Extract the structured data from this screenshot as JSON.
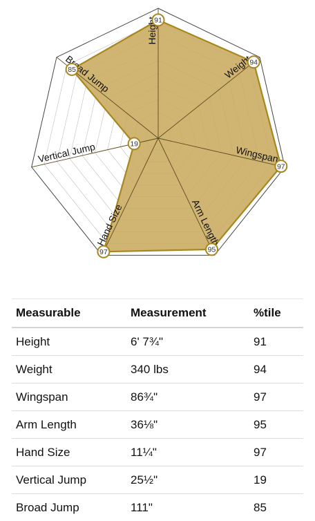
{
  "chart_data": {
    "type": "radar",
    "axes": [
      "Height",
      "Weight",
      "Wingspan",
      "Arm Length",
      "Hand Size",
      "Vertical Jump",
      "Broad Jump"
    ],
    "values": [
      91,
      94,
      97,
      95,
      97,
      19,
      85
    ],
    "range": [
      0,
      100
    ],
    "rings": 10,
    "colors": {
      "fill": "#c9aa5f",
      "stroke": "#a8861e",
      "grid": "#bfbfbf",
      "outline": "#444444",
      "spoke": "#5a4a20"
    }
  },
  "table": {
    "headers": [
      "Measurable",
      "Measurement",
      "%tile"
    ],
    "rows": [
      [
        "Height",
        "6' 7¾\"",
        "91"
      ],
      [
        "Weight",
        "340 lbs",
        "94"
      ],
      [
        "Wingspan",
        "86¾\"",
        "97"
      ],
      [
        "Arm Length",
        "36⅛\"",
        "95"
      ],
      [
        "Hand Size",
        "11¼\"",
        "97"
      ],
      [
        "Vertical Jump",
        "25½\"",
        "19"
      ],
      [
        "Broad Jump",
        "111\"",
        "85"
      ]
    ]
  }
}
